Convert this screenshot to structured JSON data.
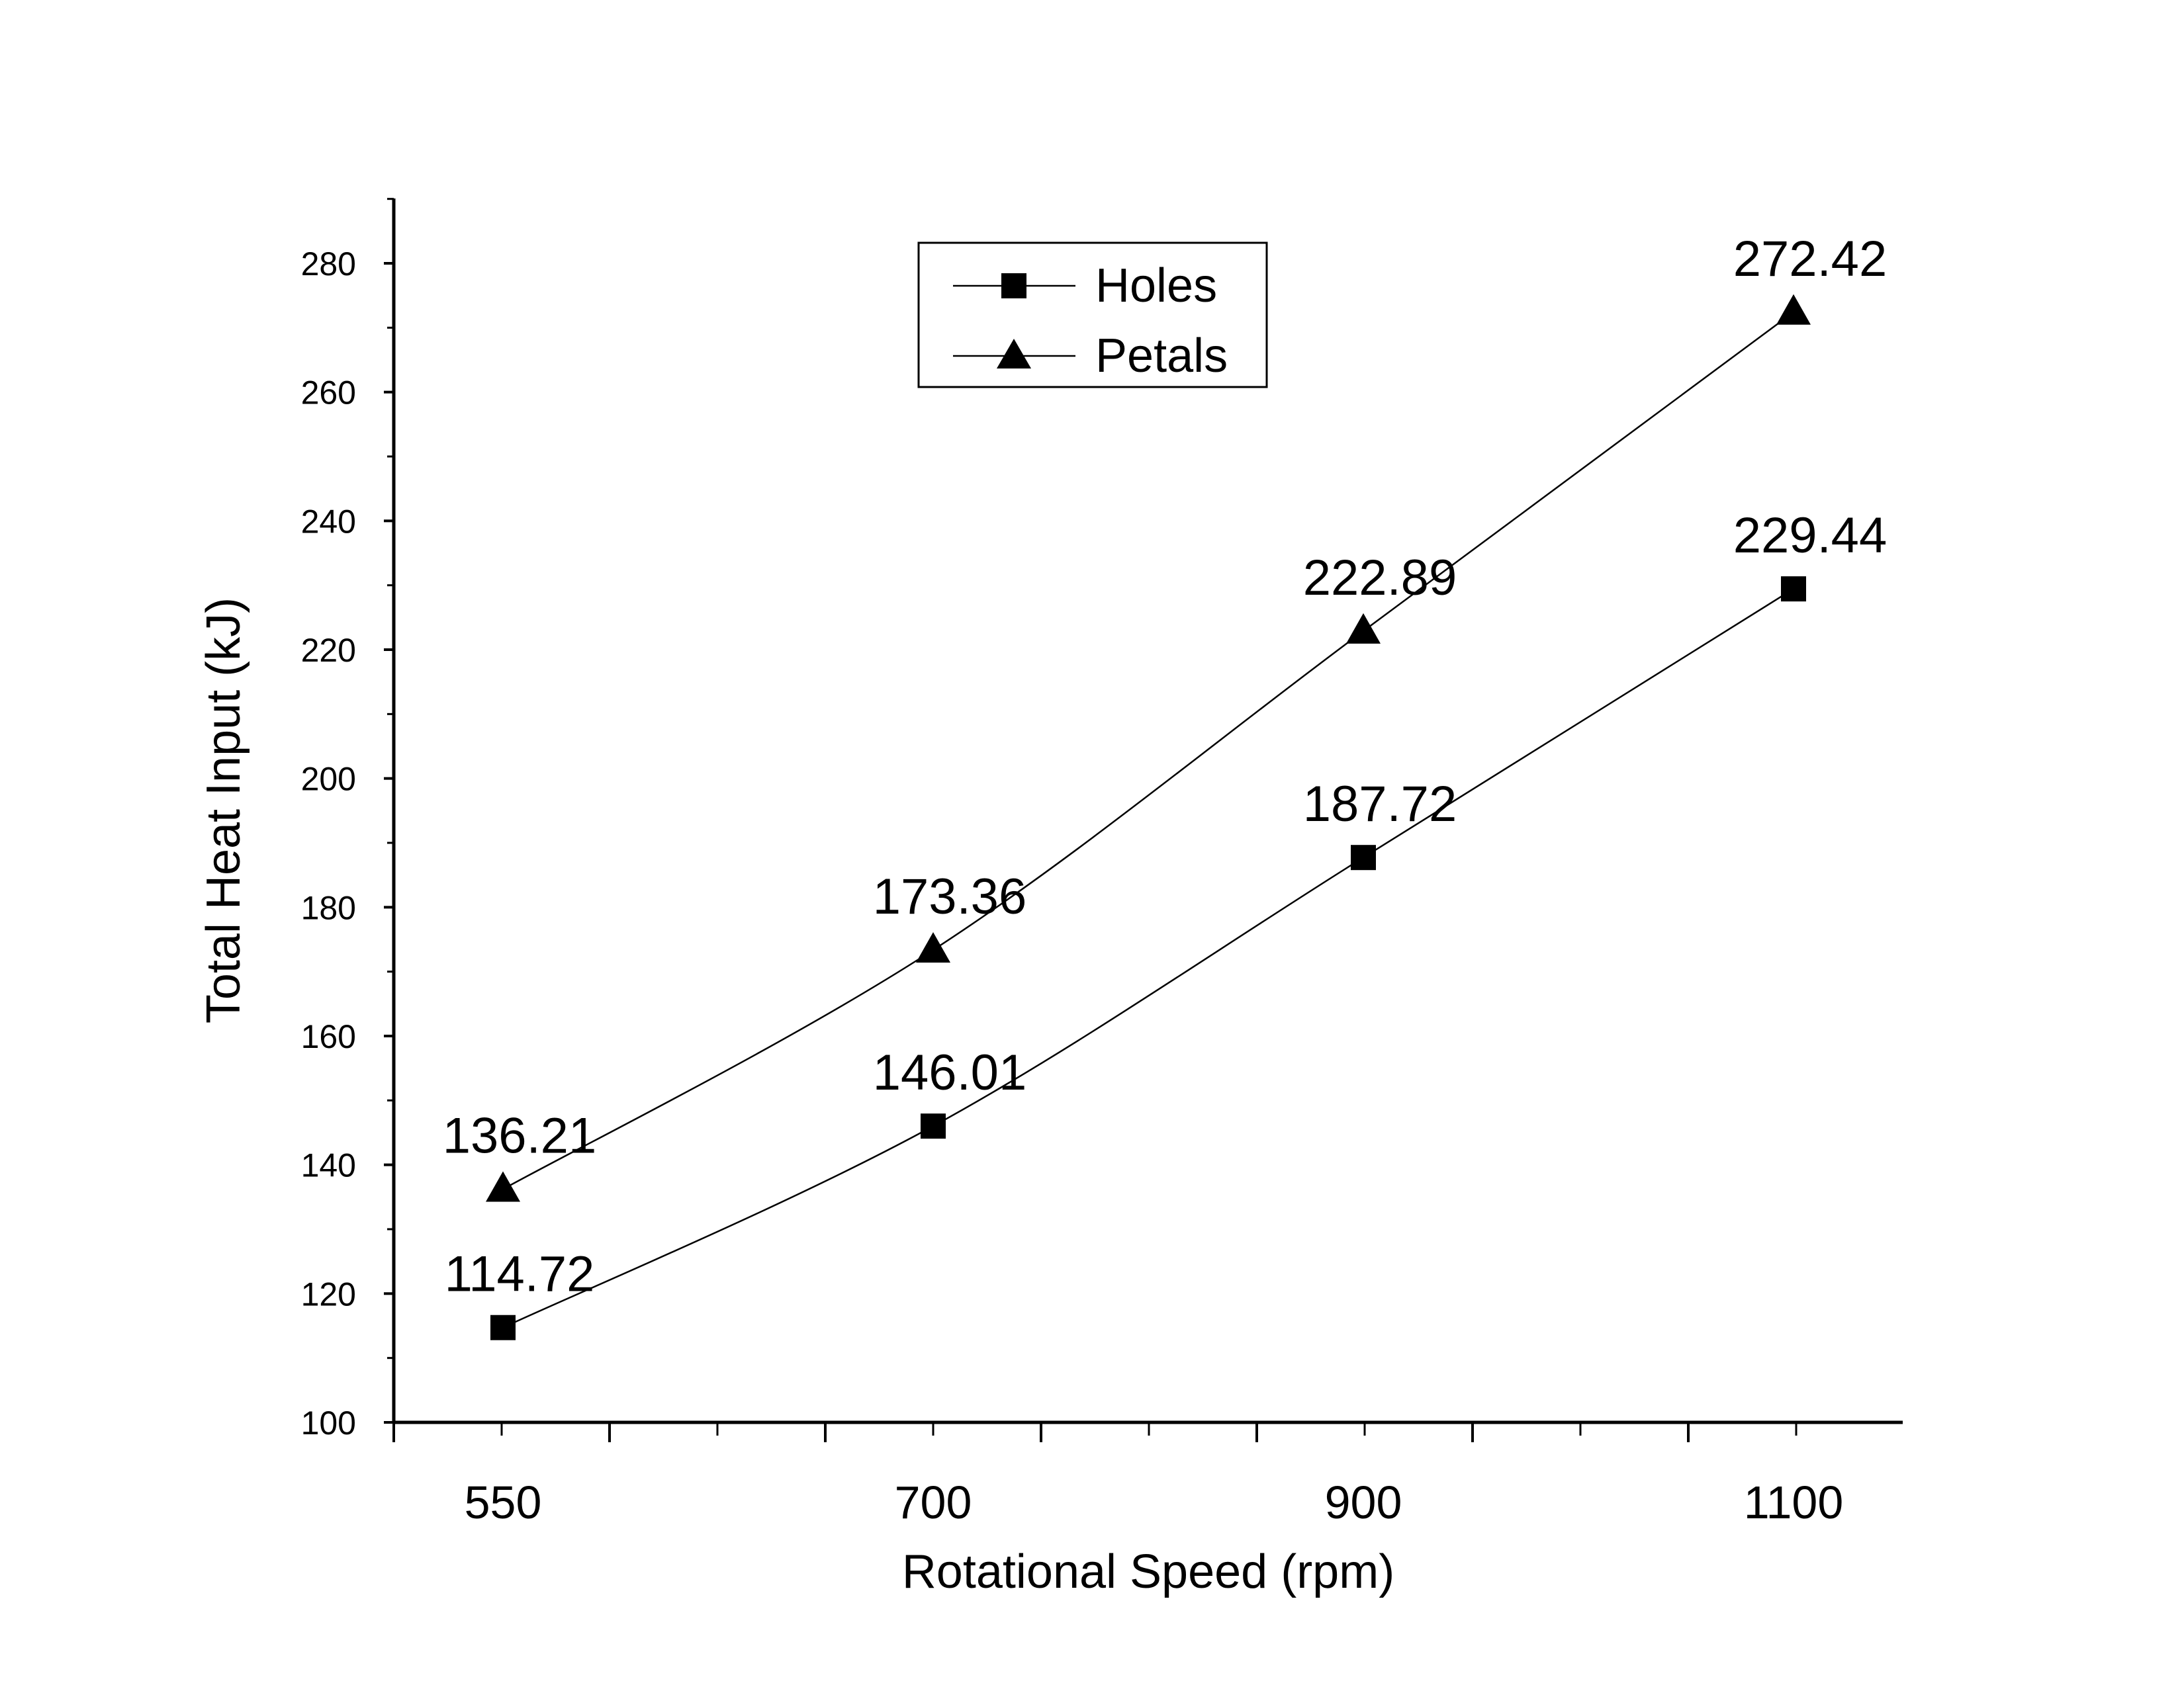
{
  "chart_data": {
    "type": "line",
    "xlabel": "Rotational Speed (rpm)",
    "ylabel": "Total Heat Input (kJ)",
    "categories": [
      "550",
      "700",
      "900",
      "1100"
    ],
    "ylim": [
      100,
      290
    ],
    "yticks": [
      100,
      120,
      140,
      160,
      180,
      200,
      220,
      240,
      260,
      280
    ],
    "grid": false,
    "legend_position": "top-center",
    "series": [
      {
        "name": "Holes",
        "marker": "square",
        "values": [
          114.72,
          146.01,
          187.72,
          229.44
        ],
        "labels": [
          "114.72",
          "146.01",
          "187.72",
          "229.44"
        ]
      },
      {
        "name": "Petals",
        "marker": "triangle",
        "values": [
          136.21,
          173.36,
          222.89,
          272.42
        ],
        "labels": [
          "136.21",
          "173.36",
          "222.89",
          "272.42"
        ]
      }
    ],
    "colors": {
      "line": "#000000",
      "marker": "#000000",
      "background": "#ffffff"
    }
  }
}
